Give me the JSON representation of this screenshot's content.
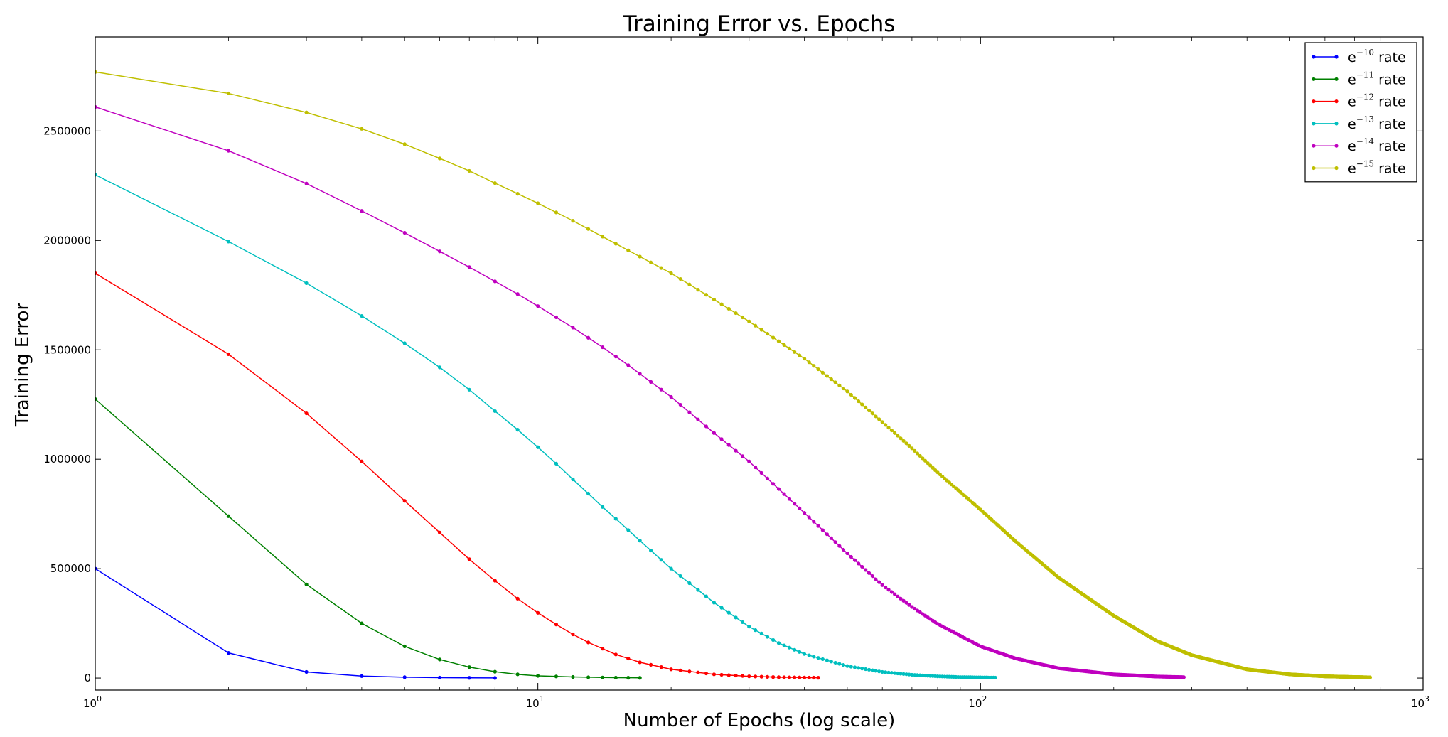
{
  "chart_data": {
    "type": "line",
    "title": "Training Error vs. Epochs",
    "xlabel": "Number of Epochs (log scale)",
    "ylabel": "Training Error",
    "x_scale": "log",
    "xlim": [
      1,
      1000
    ],
    "ylim": [
      -55000,
      2930000
    ],
    "x_ticks": [
      1,
      10,
      100,
      1000
    ],
    "x_tick_labels": [
      {
        "base": "10",
        "exp": "0"
      },
      {
        "base": "10",
        "exp": "1"
      },
      {
        "base": "10",
        "exp": "2"
      },
      {
        "base": "10",
        "exp": "3"
      }
    ],
    "y_ticks": [
      0,
      500000,
      1000000,
      1500000,
      2000000,
      2500000
    ],
    "y_tick_labels": [
      "0",
      "500000",
      "1000000",
      "1500000",
      "2000000",
      "2500000"
    ],
    "grid": false,
    "legend_position": "top-right",
    "series": [
      {
        "name": "e^{-10} rate",
        "label_base": "e",
        "label_exp": "−10",
        "label_suffix": " rate",
        "color": "#0000ff",
        "n_epochs": 8,
        "anchors": [
          [
            1,
            500000
          ],
          [
            2,
            115000
          ],
          [
            3,
            28000
          ],
          [
            4,
            9000
          ],
          [
            5,
            4000
          ],
          [
            6,
            2000
          ],
          [
            7,
            1000
          ],
          [
            8,
            500
          ]
        ]
      },
      {
        "name": "e^{-11} rate",
        "label_base": "e",
        "label_exp": "−11",
        "label_suffix": " rate",
        "color": "#008000",
        "n_epochs": 17,
        "anchors": [
          [
            1,
            1275000
          ],
          [
            2,
            740000
          ],
          [
            3,
            428000
          ],
          [
            4,
            250000
          ],
          [
            5,
            145000
          ],
          [
            6,
            85000
          ],
          [
            7,
            50000
          ],
          [
            8,
            29000
          ],
          [
            9,
            17000
          ],
          [
            10,
            10000
          ],
          [
            12,
            5000
          ],
          [
            14,
            2500
          ],
          [
            17,
            1000
          ]
        ]
      },
      {
        "name": "e^{-12} rate",
        "label_base": "e",
        "label_exp": "−12",
        "label_suffix": " rate",
        "color": "#ff0000",
        "n_epochs": 43,
        "anchors": [
          [
            1,
            1850000
          ],
          [
            2,
            1480000
          ],
          [
            3,
            1210000
          ],
          [
            4,
            990000
          ],
          [
            5,
            810000
          ],
          [
            6,
            665000
          ],
          [
            7,
            543000
          ],
          [
            8,
            445000
          ],
          [
            9,
            363000
          ],
          [
            10,
            298000
          ],
          [
            11,
            245000
          ],
          [
            12,
            200000
          ],
          [
            13,
            163000
          ],
          [
            15,
            108000
          ],
          [
            17,
            72000
          ],
          [
            20,
            40000
          ],
          [
            25,
            17000
          ],
          [
            30,
            8000
          ],
          [
            35,
            4000
          ],
          [
            43,
            1500
          ]
        ]
      },
      {
        "name": "e^{-13} rate",
        "label_base": "e",
        "label_exp": "−13",
        "label_suffix": " rate",
        "color": "#00bfbf",
        "n_epochs": 108,
        "anchors": [
          [
            1,
            2300000
          ],
          [
            2,
            1995000
          ],
          [
            3,
            1805000
          ],
          [
            4,
            1655000
          ],
          [
            5,
            1530000
          ],
          [
            6,
            1420000
          ],
          [
            7,
            1318000
          ],
          [
            8,
            1220000
          ],
          [
            9,
            1135000
          ],
          [
            10,
            1055000
          ],
          [
            11,
            980000
          ],
          [
            12,
            908000
          ],
          [
            13,
            843000
          ],
          [
            14,
            782000
          ],
          [
            15,
            728000
          ],
          [
            17,
            628000
          ],
          [
            20,
            500000
          ],
          [
            25,
            345000
          ],
          [
            30,
            235000
          ],
          [
            35,
            160000
          ],
          [
            40,
            110000
          ],
          [
            50,
            55000
          ],
          [
            60,
            28000
          ],
          [
            70,
            15000
          ],
          [
            80,
            8000
          ],
          [
            90,
            4500
          ],
          [
            108,
            2000
          ]
        ]
      },
      {
        "name": "e^{-14} rate",
        "label_base": "e",
        "label_exp": "−14",
        "label_suffix": " rate",
        "color": "#bf00bf",
        "n_epochs": 288,
        "anchors": [
          [
            1,
            2610000
          ],
          [
            2,
            2410000
          ],
          [
            3,
            2260000
          ],
          [
            4,
            2135000
          ],
          [
            5,
            2035000
          ],
          [
            6,
            1950000
          ],
          [
            7,
            1878000
          ],
          [
            8,
            1813000
          ],
          [
            9,
            1755000
          ],
          [
            10,
            1700000
          ],
          [
            12,
            1602000
          ],
          [
            14,
            1512000
          ],
          [
            16,
            1430000
          ],
          [
            20,
            1285000
          ],
          [
            25,
            1120000
          ],
          [
            30,
            990000
          ],
          [
            40,
            755000
          ],
          [
            50,
            570000
          ],
          [
            60,
            425000
          ],
          [
            70,
            325000
          ],
          [
            80,
            248000
          ],
          [
            100,
            145000
          ],
          [
            120,
            90000
          ],
          [
            150,
            45000
          ],
          [
            200,
            17000
          ],
          [
            250,
            7000
          ],
          [
            288,
            4000
          ]
        ]
      },
      {
        "name": "e^{-15} rate",
        "label_base": "e",
        "label_exp": "−15",
        "label_suffix": " rate",
        "color": "#bfbf00",
        "n_epochs": 759,
        "anchors": [
          [
            1,
            2770000
          ],
          [
            2,
            2672000
          ],
          [
            3,
            2585000
          ],
          [
            4,
            2510000
          ],
          [
            5,
            2440000
          ],
          [
            6,
            2375000
          ],
          [
            7,
            2318000
          ],
          [
            8,
            2262000
          ],
          [
            10,
            2170000
          ],
          [
            12,
            2090000
          ],
          [
            15,
            1985000
          ],
          [
            20,
            1850000
          ],
          [
            25,
            1730000
          ],
          [
            30,
            1630000
          ],
          [
            40,
            1460000
          ],
          [
            50,
            1310000
          ],
          [
            60,
            1170000
          ],
          [
            70,
            1050000
          ],
          [
            80,
            940000
          ],
          [
            100,
            770000
          ],
          [
            120,
            625000
          ],
          [
            150,
            460000
          ],
          [
            200,
            285000
          ],
          [
            250,
            170000
          ],
          [
            300,
            105000
          ],
          [
            400,
            40000
          ],
          [
            500,
            17000
          ],
          [
            600,
            8000
          ],
          [
            759,
            3000
          ]
        ]
      }
    ]
  }
}
